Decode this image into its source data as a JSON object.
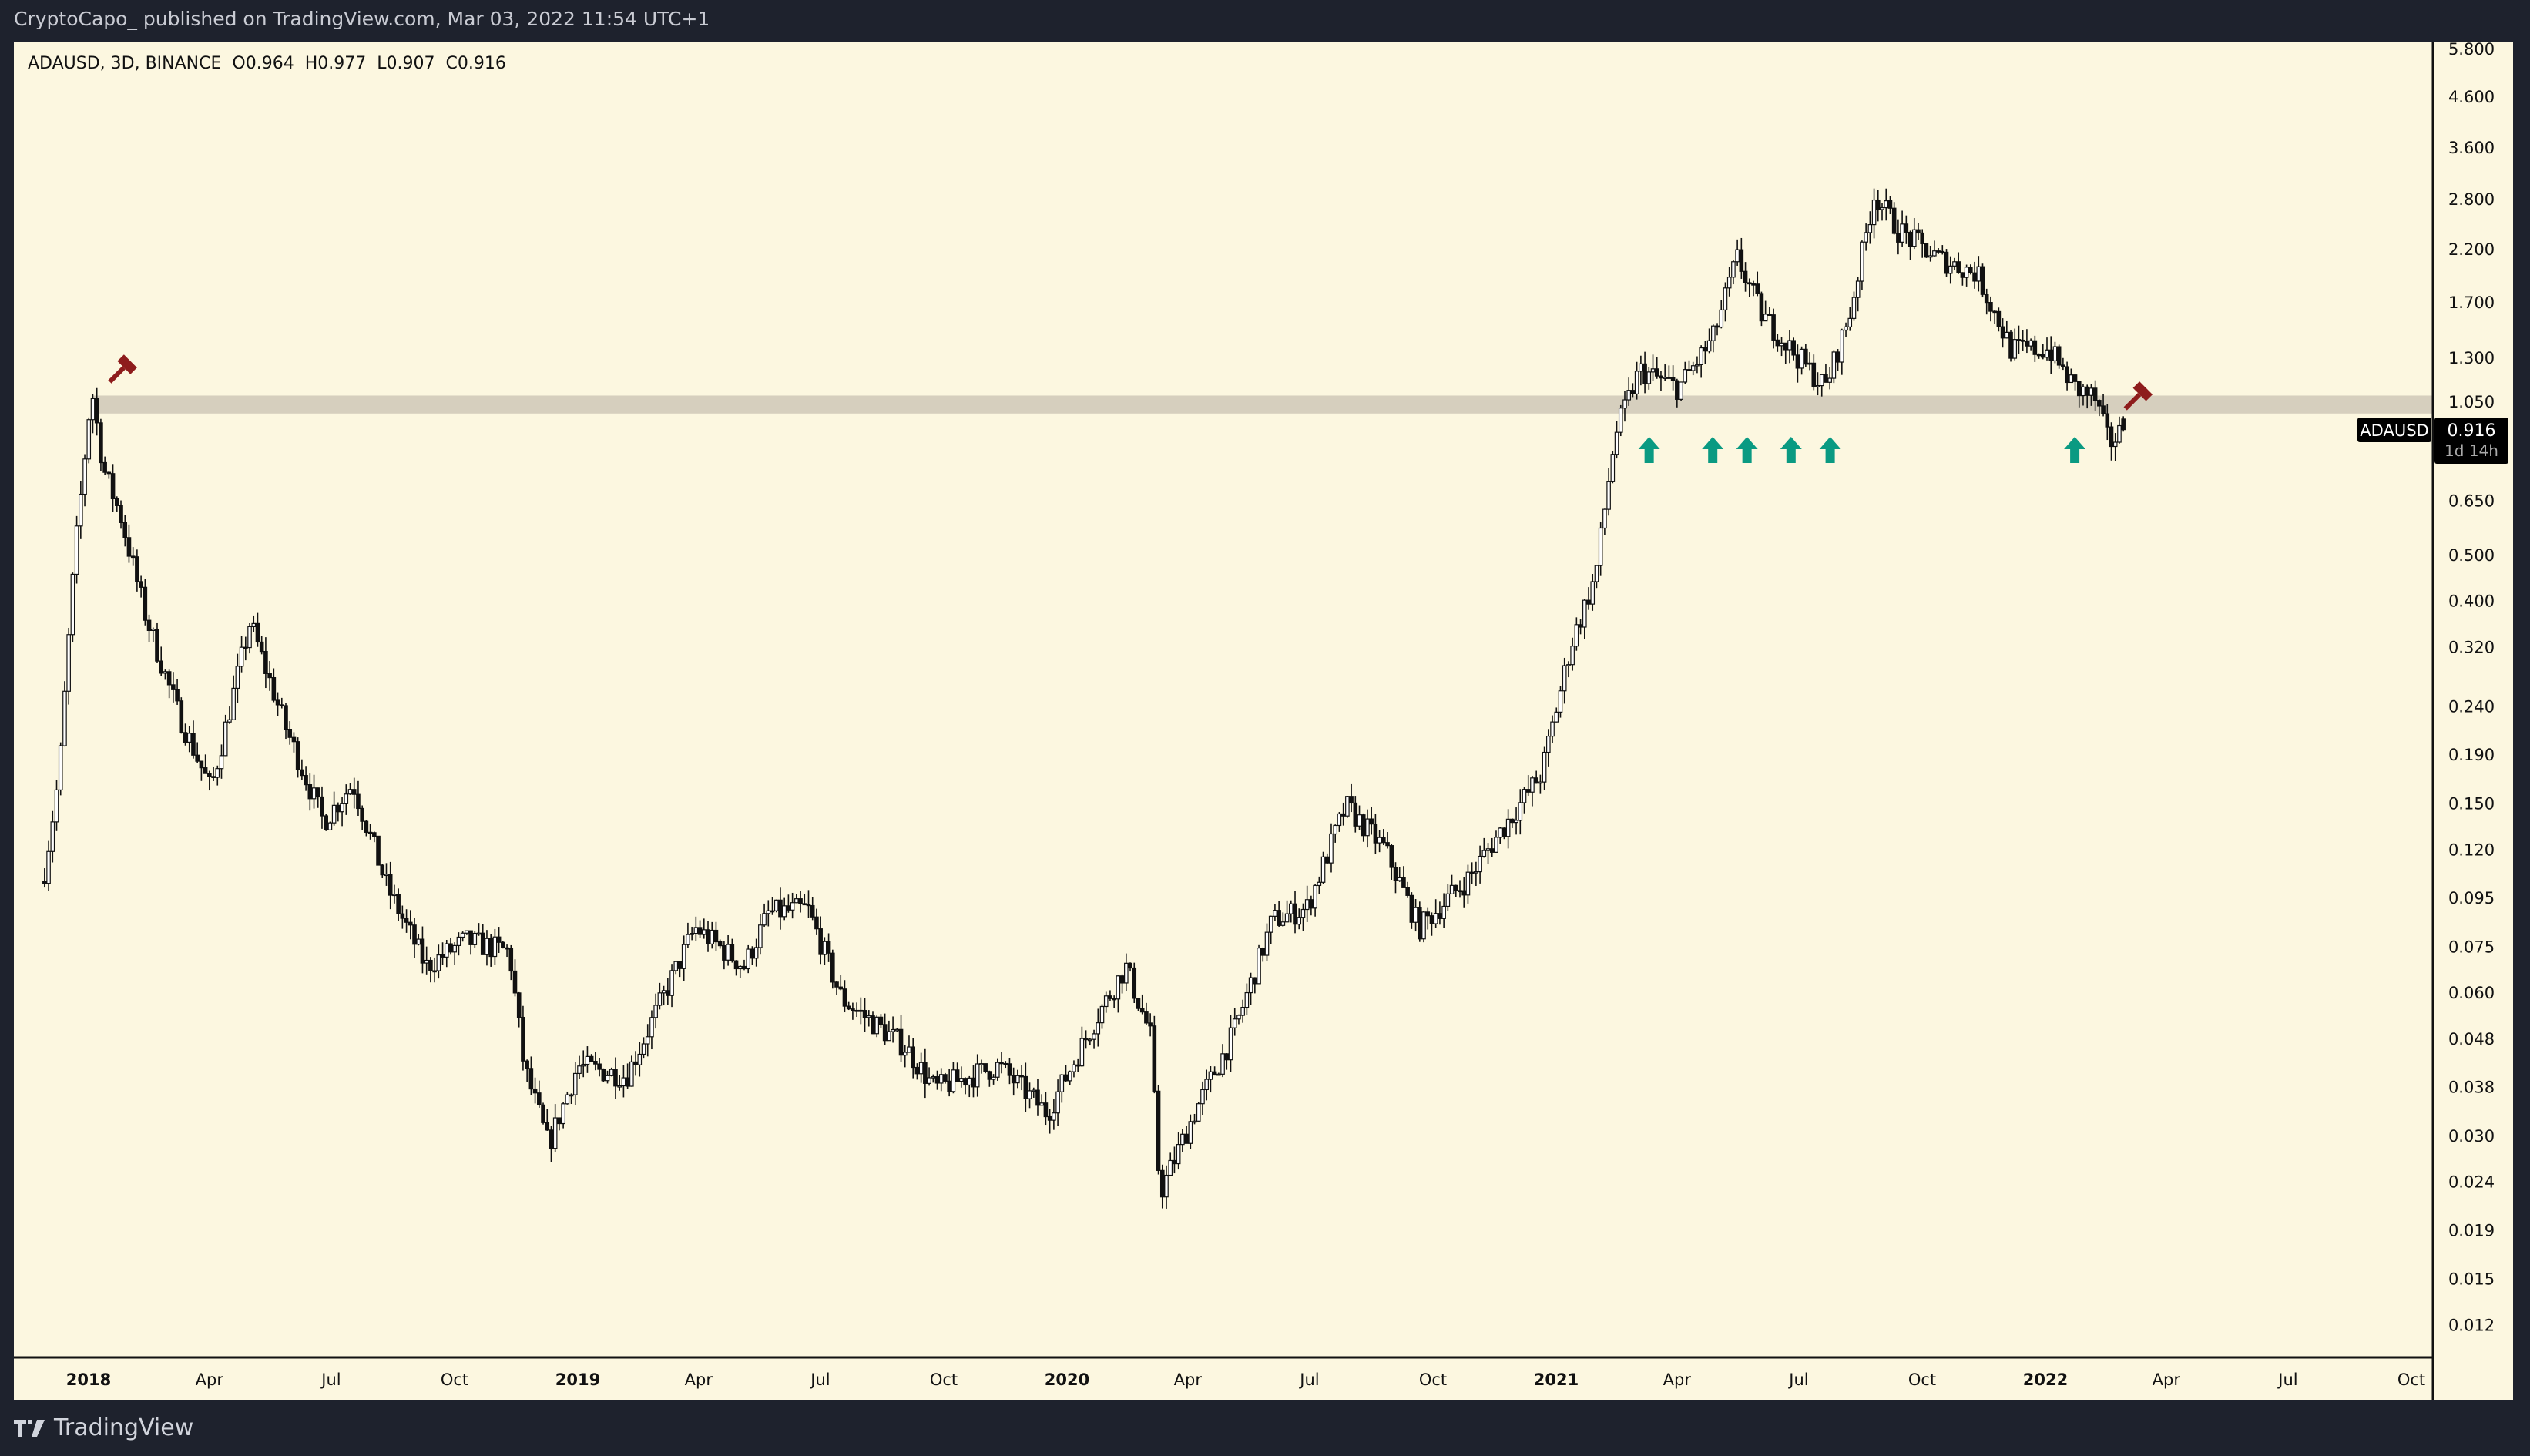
{
  "header": {
    "publisher_line": "CryptoCapo_ published on TradingView.com, Mar 03, 2022 11:54 UTC+1"
  },
  "legend": {
    "symbol": "ADAUSD, 3D, BINANCE",
    "open": "O0.964",
    "high": "H0.977",
    "low": "L0.907",
    "close": "C0.916"
  },
  "footer": {
    "brand": "TradingView"
  },
  "colors": {
    "background": "#fcf7e0",
    "frame": "#1e222d",
    "band": "#d6cfbe",
    "arrow": "#0a9a82",
    "hammer": "#8e1c1c"
  },
  "chart_data": {
    "type": "candlestick",
    "title": "ADAUSD, 3D, BINANCE",
    "scale": "log",
    "ylim": [
      0.011,
      6.2
    ],
    "xlim": [
      2017.88,
      2022.95
    ],
    "price_ticks": [
      "5.800",
      "4.600",
      "3.600",
      "2.800",
      "2.200",
      "1.700",
      "1.300",
      "1.050",
      "0.650",
      "0.500",
      "0.400",
      "0.320",
      "0.240",
      "0.190",
      "0.150",
      "0.120",
      "0.095",
      "0.075",
      "0.060",
      "0.048",
      "0.038",
      "0.030",
      "0.024",
      "0.019",
      "0.015",
      "0.012"
    ],
    "time_ticks": [
      {
        "label": "2018",
        "t": 2018.0,
        "bold": true
      },
      {
        "label": "Apr",
        "t": 2018.247
      },
      {
        "label": "Jul",
        "t": 2018.496
      },
      {
        "label": "Oct",
        "t": 2018.748
      },
      {
        "label": "2019",
        "t": 2019.0,
        "bold": true
      },
      {
        "label": "Apr",
        "t": 2019.247
      },
      {
        "label": "Jul",
        "t": 2019.496
      },
      {
        "label": "Oct",
        "t": 2019.748
      },
      {
        "label": "2020",
        "t": 2020.0,
        "bold": true
      },
      {
        "label": "Apr",
        "t": 2020.247
      },
      {
        "label": "Jul",
        "t": 2020.496
      },
      {
        "label": "Oct",
        "t": 2020.748
      },
      {
        "label": "2021",
        "t": 2021.0,
        "bold": true
      },
      {
        "label": "Apr",
        "t": 2021.247
      },
      {
        "label": "Jul",
        "t": 2021.496
      },
      {
        "label": "Oct",
        "t": 2021.748
      },
      {
        "label": "2022",
        "t": 2022.0,
        "bold": true
      },
      {
        "label": "Apr",
        "t": 2022.247
      },
      {
        "label": "Jul",
        "t": 2022.496
      },
      {
        "label": "Oct",
        "t": 2022.748
      }
    ],
    "price_path": [
      [
        2017.91,
        0.108
      ],
      [
        2017.94,
        0.173
      ],
      [
        2017.97,
        0.476
      ],
      [
        2018.006,
        1.12
      ],
      [
        2018.03,
        0.76
      ],
      [
        2018.066,
        0.6
      ],
      [
        2018.115,
        0.376
      ],
      [
        2018.18,
        0.236
      ],
      [
        2018.25,
        0.16
      ],
      [
        2018.33,
        0.36
      ],
      [
        2018.4,
        0.22
      ],
      [
        2018.48,
        0.137
      ],
      [
        2018.54,
        0.165
      ],
      [
        2018.61,
        0.1
      ],
      [
        2018.69,
        0.068
      ],
      [
        2018.77,
        0.077
      ],
      [
        2018.86,
        0.073
      ],
      [
        2018.89,
        0.042
      ],
      [
        2018.94,
        0.0286
      ],
      [
        2019.0,
        0.042
      ],
      [
        2019.1,
        0.04
      ],
      [
        2019.24,
        0.082
      ],
      [
        2019.34,
        0.068
      ],
      [
        2019.39,
        0.088
      ],
      [
        2019.47,
        0.09
      ],
      [
        2019.54,
        0.058
      ],
      [
        2019.67,
        0.046
      ],
      [
        2019.73,
        0.0376
      ],
      [
        2019.86,
        0.042
      ],
      [
        2019.96,
        0.0334
      ],
      [
        2020.06,
        0.053
      ],
      [
        2020.12,
        0.068
      ],
      [
        2020.17,
        0.049
      ],
      [
        2020.19,
        0.0226
      ],
      [
        2020.26,
        0.0334
      ],
      [
        2020.34,
        0.049
      ],
      [
        2020.42,
        0.085
      ],
      [
        2020.49,
        0.09
      ],
      [
        2020.57,
        0.148
      ],
      [
        2020.65,
        0.12
      ],
      [
        2020.72,
        0.082
      ],
      [
        2020.82,
        0.104
      ],
      [
        2020.88,
        0.128
      ],
      [
        2020.97,
        0.173
      ],
      [
        2021.03,
        0.323
      ],
      [
        2021.08,
        0.45
      ],
      [
        2021.12,
        0.89
      ],
      [
        2021.17,
        1.22
      ],
      [
        2021.25,
        1.12
      ],
      [
        2021.32,
        1.42
      ],
      [
        2021.37,
        2.1
      ],
      [
        2021.42,
        1.6
      ],
      [
        2021.48,
        1.35
      ],
      [
        2021.55,
        1.12
      ],
      [
        2021.6,
        1.6
      ],
      [
        2021.65,
        2.87
      ],
      [
        2021.7,
        2.4
      ],
      [
        2021.78,
        2.1
      ],
      [
        2021.86,
        1.95
      ],
      [
        2021.93,
        1.35
      ],
      [
        2022.007,
        1.35
      ],
      [
        2022.06,
        1.12
      ],
      [
        2022.1,
        1.07
      ],
      [
        2022.13,
        0.855
      ],
      [
        2022.16,
        0.916
      ]
    ],
    "last_candle": {
      "open": 0.964,
      "high": 0.977,
      "low": 0.907,
      "close": 0.916
    },
    "support_zone": [
      0.99,
      1.08
    ],
    "support_arrows_t": [
      2021.19,
      2021.32,
      2021.39,
      2021.48,
      2021.56,
      2022.06
    ],
    "hammer_markers": [
      {
        "t": 2018.07,
        "price": 1.23
      },
      {
        "t": 2022.19,
        "price": 1.08
      }
    ],
    "price_label": {
      "symbol": "ADAUSD",
      "price": "0.916",
      "countdown": "1d 14h"
    }
  }
}
